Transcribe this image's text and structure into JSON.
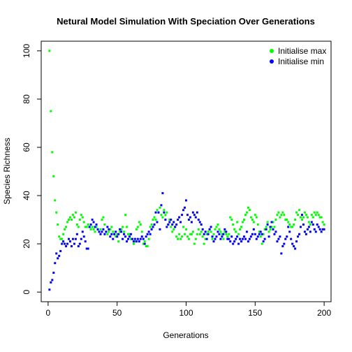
{
  "chart_data": {
    "type": "scatter",
    "title": "Netural Model Simulation With Speciation Over Generations",
    "xlabel": "Generations",
    "ylabel": "Species Richness",
    "xlim": [
      -5,
      205
    ],
    "ylim": [
      -4,
      104
    ],
    "xticks": [
      0,
      50,
      100,
      150,
      200
    ],
    "yticks": [
      0,
      20,
      40,
      60,
      80,
      100
    ],
    "grid": false,
    "legend_position": "top-right",
    "series": [
      {
        "name": "Initialise max",
        "color": "#00ff00",
        "x": [
          1,
          2,
          3,
          4,
          5,
          6,
          7,
          8,
          9,
          10,
          11,
          12,
          13,
          14,
          15,
          16,
          17,
          18,
          19,
          20,
          21,
          22,
          23,
          24,
          25,
          26,
          27,
          28,
          29,
          30,
          31,
          32,
          33,
          34,
          35,
          36,
          37,
          38,
          39,
          40,
          41,
          42,
          43,
          44,
          45,
          46,
          47,
          48,
          49,
          50,
          51,
          52,
          53,
          54,
          55,
          56,
          57,
          58,
          59,
          60,
          61,
          62,
          63,
          64,
          65,
          66,
          67,
          68,
          69,
          70,
          71,
          72,
          73,
          74,
          75,
          76,
          77,
          78,
          79,
          80,
          81,
          82,
          83,
          84,
          85,
          86,
          87,
          88,
          89,
          90,
          91,
          92,
          93,
          94,
          95,
          96,
          97,
          98,
          99,
          100,
          101,
          102,
          103,
          104,
          105,
          106,
          107,
          108,
          109,
          110,
          111,
          112,
          113,
          114,
          115,
          116,
          117,
          118,
          119,
          120,
          121,
          122,
          123,
          124,
          125,
          126,
          127,
          128,
          129,
          130,
          131,
          132,
          133,
          134,
          135,
          136,
          137,
          138,
          139,
          140,
          141,
          142,
          143,
          144,
          145,
          146,
          147,
          148,
          149,
          150,
          151,
          152,
          153,
          154,
          155,
          156,
          157,
          158,
          159,
          160,
          161,
          162,
          163,
          164,
          165,
          166,
          167,
          168,
          169,
          170,
          171,
          172,
          173,
          174,
          175,
          176,
          177,
          178,
          179,
          180,
          181,
          182,
          183,
          184,
          185,
          186,
          187,
          188,
          189,
          190,
          191,
          192,
          193,
          194,
          195,
          196,
          197,
          198,
          199,
          200
        ],
        "y": [
          100,
          75,
          58,
          48,
          38,
          33,
          28,
          23,
          22,
          22,
          24,
          26,
          27,
          29,
          30,
          31,
          30,
          32,
          31,
          33,
          28,
          27,
          30,
          32,
          31,
          29,
          27,
          27,
          28,
          27,
          26,
          27,
          26,
          25,
          27,
          26,
          25,
          26,
          30,
          31,
          28,
          25,
          24,
          25,
          26,
          27,
          25,
          24,
          23,
          24,
          21,
          25,
          26,
          27,
          25,
          32,
          27,
          24,
          24,
          22,
          22,
          20,
          21,
          26,
          27,
          29,
          28,
          25,
          20,
          21,
          19,
          19,
          22,
          27,
          28,
          30,
          31,
          30,
          34,
          33,
          35,
          32,
          31,
          34,
          32,
          33,
          28,
          30,
          27,
          25,
          26,
          27,
          23,
          22,
          24,
          22,
          23,
          27,
          24,
          26,
          23,
          22,
          24,
          24,
          25,
          20,
          22,
          24,
          26,
          24,
          25,
          23,
          20,
          22,
          24,
          25,
          26,
          25,
          22,
          24,
          26,
          27,
          28,
          26,
          25,
          24,
          22,
          25,
          24,
          23,
          24,
          31,
          30,
          28,
          26,
          25,
          29,
          24,
          26,
          27,
          29,
          30,
          32,
          33,
          35,
          34,
          31,
          30,
          29,
          32,
          31,
          28,
          25,
          23,
          20,
          24,
          26,
          27,
          29,
          25,
          26,
          27,
          29,
          27,
          30,
          32,
          33,
          31,
          32,
          33,
          32,
          30,
          30,
          29,
          28,
          27,
          27,
          28,
          30,
          33,
          32,
          34,
          31,
          30,
          31,
          33,
          32,
          31,
          29,
          28,
          32,
          31,
          33,
          32,
          33,
          32,
          31,
          31,
          29,
          28
        ]
      },
      {
        "name": "Initialise min",
        "color": "#0000ff",
        "x": [
          1,
          2,
          3,
          4,
          5,
          6,
          7,
          8,
          9,
          10,
          11,
          12,
          13,
          14,
          15,
          16,
          17,
          18,
          19,
          20,
          21,
          22,
          23,
          24,
          25,
          26,
          27,
          28,
          29,
          30,
          31,
          32,
          33,
          34,
          35,
          36,
          37,
          38,
          39,
          40,
          41,
          42,
          43,
          44,
          45,
          46,
          47,
          48,
          49,
          50,
          51,
          52,
          53,
          54,
          55,
          56,
          57,
          58,
          59,
          60,
          61,
          62,
          63,
          64,
          65,
          66,
          67,
          68,
          69,
          70,
          71,
          72,
          73,
          74,
          75,
          76,
          77,
          78,
          79,
          80,
          81,
          82,
          83,
          84,
          85,
          86,
          87,
          88,
          89,
          90,
          91,
          92,
          93,
          94,
          95,
          96,
          97,
          98,
          99,
          100,
          101,
          102,
          103,
          104,
          105,
          106,
          107,
          108,
          109,
          110,
          111,
          112,
          113,
          114,
          115,
          116,
          117,
          118,
          119,
          120,
          121,
          122,
          123,
          124,
          125,
          126,
          127,
          128,
          129,
          130,
          131,
          132,
          133,
          134,
          135,
          136,
          137,
          138,
          139,
          140,
          141,
          142,
          143,
          144,
          145,
          146,
          147,
          148,
          149,
          150,
          151,
          152,
          153,
          154,
          155,
          156,
          157,
          158,
          159,
          160,
          161,
          162,
          163,
          164,
          165,
          166,
          167,
          168,
          169,
          170,
          171,
          172,
          173,
          174,
          175,
          176,
          177,
          178,
          179,
          180,
          181,
          182,
          183,
          184,
          185,
          186,
          187,
          188,
          189,
          190,
          191,
          192,
          193,
          194,
          195,
          196,
          197,
          198,
          199,
          200
        ],
        "y": [
          1,
          4,
          5,
          8,
          12,
          16,
          14,
          15,
          17,
          20,
          21,
          20,
          19,
          20,
          22,
          21,
          19,
          22,
          20,
          22,
          24,
          19,
          20,
          22,
          25,
          23,
          21,
          18,
          18,
          27,
          28,
          30,
          29,
          27,
          28,
          26,
          25,
          24,
          25,
          26,
          24,
          25,
          27,
          26,
          23,
          24,
          22,
          24,
          25,
          23,
          24,
          26,
          25,
          22,
          24,
          23,
          21,
          22,
          23,
          24,
          22,
          21,
          22,
          21,
          22,
          21,
          22,
          23,
          22,
          20,
          23,
          24,
          25,
          24,
          26,
          27,
          28,
          33,
          29,
          33,
          26,
          36,
          41,
          33,
          30,
          27,
          28,
          29,
          30,
          28,
          29,
          27,
          28,
          30,
          31,
          29,
          32,
          34,
          35,
          38,
          32,
          30,
          31,
          29,
          33,
          32,
          31,
          33,
          30,
          29,
          28,
          26,
          24,
          25,
          22,
          24,
          26,
          27,
          23,
          21,
          22,
          23,
          25,
          24,
          22,
          23,
          24,
          26,
          25,
          22,
          22,
          21,
          23,
          20,
          21,
          22,
          23,
          20,
          22,
          21,
          22,
          23,
          22,
          25,
          21,
          22,
          23,
          24,
          26,
          24,
          22,
          23,
          24,
          25,
          24,
          21,
          22,
          26,
          28,
          23,
          27,
          29,
          26,
          24,
          25,
          21,
          22,
          23,
          16,
          19,
          20,
          22,
          23,
          27,
          25,
          22,
          20,
          19,
          18,
          21,
          23,
          24,
          27,
          32,
          28,
          25,
          24,
          26,
          27,
          25,
          29,
          28,
          26,
          25,
          28,
          27,
          26,
          25,
          26,
          26
        ]
      }
    ]
  }
}
